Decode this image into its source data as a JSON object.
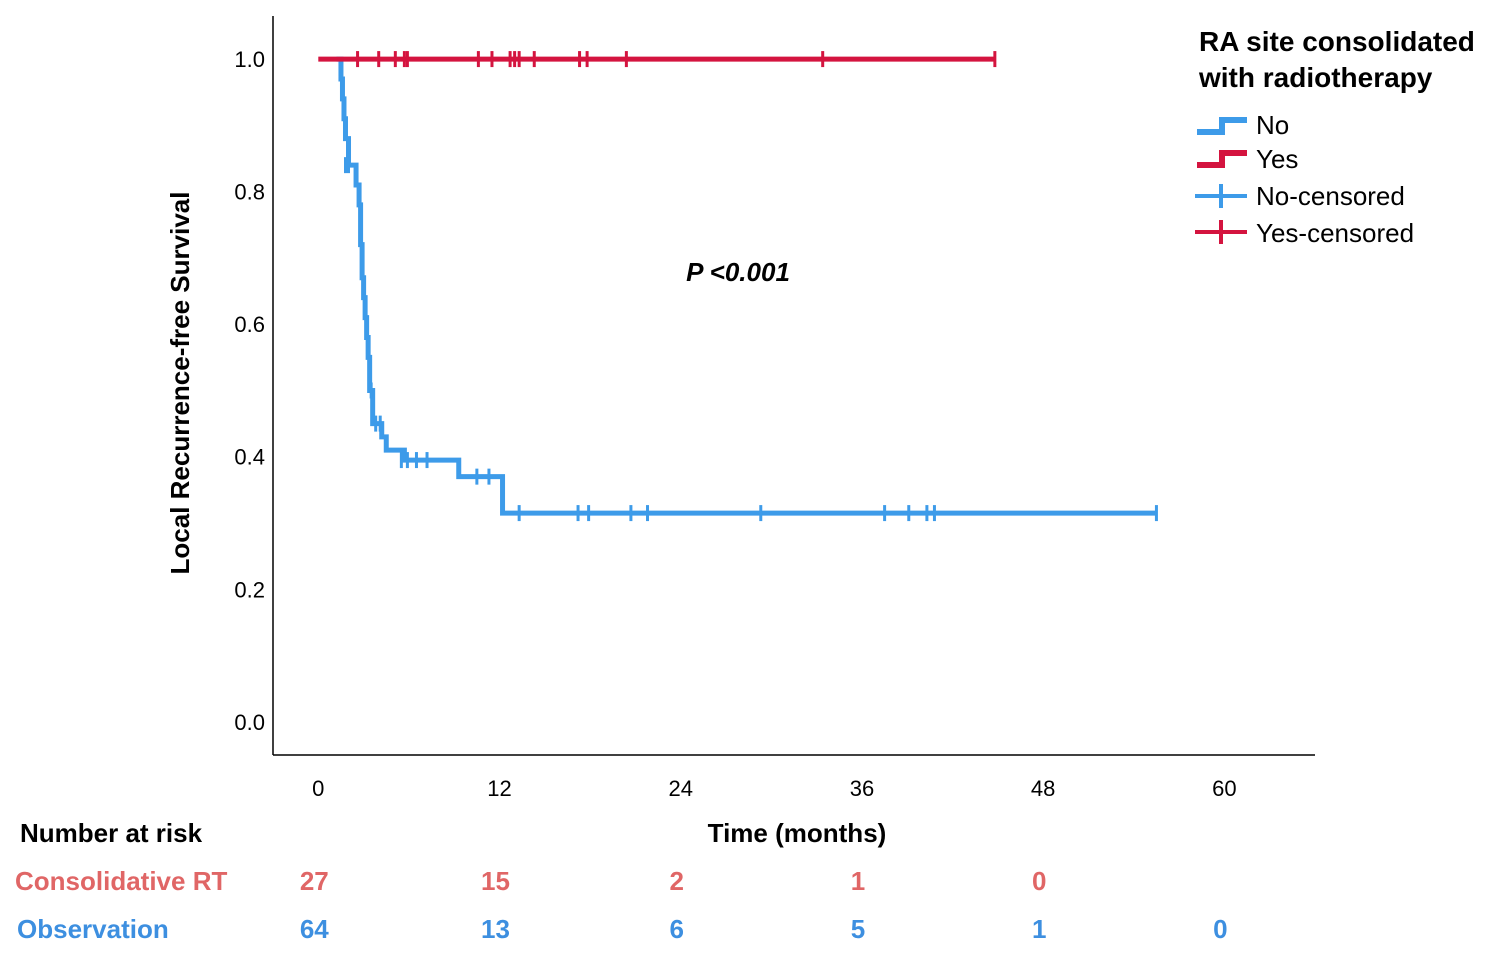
{
  "colors": {
    "no": "#3d9be9",
    "yes": "#d4143f",
    "rt_text": "#e06666",
    "obs_text": "#3d8fe0"
  },
  "chart_data": {
    "type": "line",
    "subtype": "kaplan-meier",
    "xlabel": "Time (months)",
    "ylabel": "Local Recurrence-free Survival",
    "xlim": [
      -3,
      66
    ],
    "ylim": [
      -0.05,
      1.065
    ],
    "xticks": [
      0,
      12,
      24,
      36,
      48,
      60
    ],
    "xtick_labels": [
      "0",
      "12",
      "24",
      "36",
      "48",
      "60"
    ],
    "yticks": [
      0.0,
      0.2,
      0.4,
      0.6,
      0.8,
      1.0
    ],
    "ytick_labels": [
      "0.0",
      "0.2",
      "0.4",
      "0.6",
      "0.8",
      "1.0"
    ],
    "legend": {
      "title_lines": [
        "RA site consolidated",
        "with radiotherapy"
      ],
      "placement": "top-right",
      "entries": [
        "No",
        "Yes",
        "No-censored",
        "Yes-censored"
      ]
    },
    "annotation": "P <0.001",
    "series": [
      {
        "name": "No",
        "steps": [
          [
            1.2,
            1.0
          ],
          [
            1.5,
            0.97
          ],
          [
            1.6,
            0.94
          ],
          [
            1.7,
            0.91
          ],
          [
            1.8,
            0.88
          ],
          [
            2.0,
            0.84
          ],
          [
            2.5,
            0.81
          ],
          [
            2.7,
            0.78
          ],
          [
            2.8,
            0.72
          ],
          [
            2.9,
            0.67
          ],
          [
            3.0,
            0.64
          ],
          [
            3.1,
            0.61
          ],
          [
            3.2,
            0.58
          ],
          [
            3.3,
            0.55
          ],
          [
            3.4,
            0.5
          ],
          [
            3.6,
            0.45
          ],
          [
            4.2,
            0.43
          ],
          [
            4.5,
            0.41
          ],
          [
            5.7,
            0.395
          ],
          [
            9.3,
            0.37
          ],
          [
            12.2,
            0.315
          ],
          [
            55.5,
            0.315
          ]
        ],
        "censored": [
          [
            1.8,
            0.84
          ],
          [
            2.0,
            0.84
          ],
          [
            3.5,
            0.5
          ],
          [
            3.8,
            0.45
          ],
          [
            4.1,
            0.45
          ],
          [
            5.5,
            0.395
          ],
          [
            5.9,
            0.395
          ],
          [
            6.5,
            0.395
          ],
          [
            7.2,
            0.395
          ],
          [
            10.5,
            0.37
          ],
          [
            11.3,
            0.37
          ],
          [
            13.3,
            0.315
          ],
          [
            17.2,
            0.315
          ],
          [
            17.9,
            0.315
          ],
          [
            20.7,
            0.315
          ],
          [
            21.8,
            0.315
          ],
          [
            29.3,
            0.315
          ],
          [
            37.5,
            0.315
          ],
          [
            39.1,
            0.315
          ],
          [
            40.3,
            0.315
          ],
          [
            40.8,
            0.315
          ],
          [
            55.5,
            0.315
          ]
        ]
      },
      {
        "name": "Yes",
        "steps": [
          [
            0,
            1.0
          ],
          [
            44.8,
            1.0
          ]
        ],
        "censored": [
          [
            2.6,
            1.0
          ],
          [
            4.0,
            1.0
          ],
          [
            5.1,
            1.0
          ],
          [
            5.7,
            1.0
          ],
          [
            5.9,
            1.0
          ],
          [
            10.6,
            1.0
          ],
          [
            11.5,
            1.0
          ],
          [
            12.7,
            1.0
          ],
          [
            13.0,
            1.0
          ],
          [
            13.3,
            1.0
          ],
          [
            14.3,
            1.0
          ],
          [
            17.3,
            1.0
          ],
          [
            17.8,
            1.0
          ],
          [
            20.4,
            1.0
          ],
          [
            33.4,
            1.0
          ],
          [
            44.8,
            1.0
          ]
        ]
      }
    ]
  },
  "risk_table": {
    "header": "Number at risk",
    "rows": [
      {
        "label": "Consolidative RT",
        "values": [
          "27",
          "15",
          "2",
          "1",
          "0",
          ""
        ]
      },
      {
        "label": "Observation",
        "values": [
          "64",
          "13",
          "6",
          "5",
          "1",
          "0"
        ]
      }
    ]
  }
}
